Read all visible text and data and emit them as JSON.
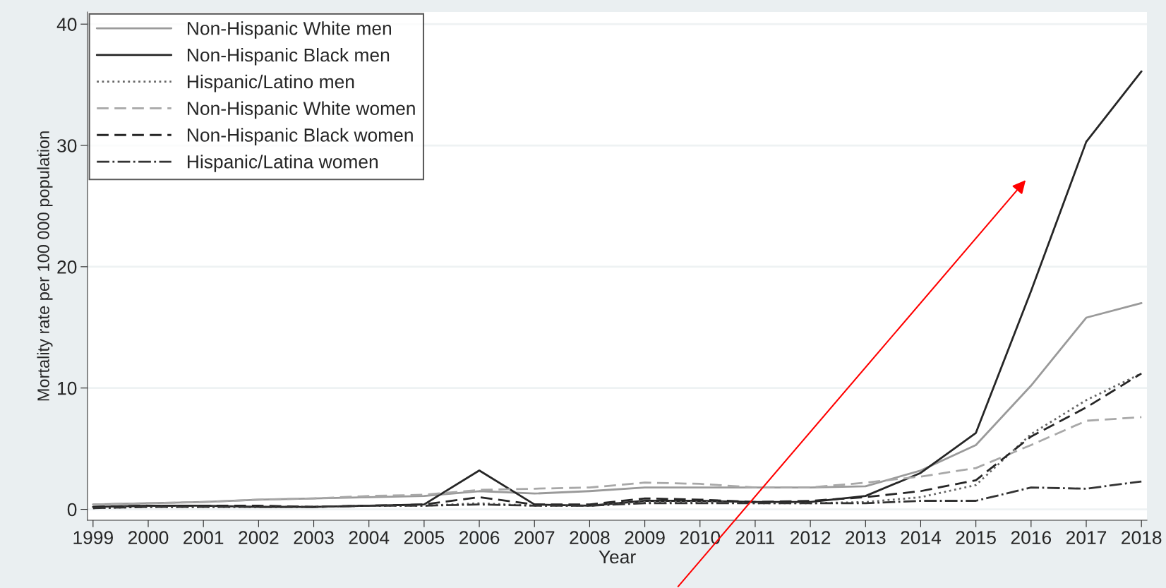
{
  "chart_data": {
    "type": "line",
    "xlabel": "Year",
    "ylabel": "Mortality rate per 100 000 population",
    "x": [
      1999,
      2000,
      2001,
      2002,
      2003,
      2004,
      2005,
      2006,
      2007,
      2008,
      2009,
      2010,
      2011,
      2012,
      2013,
      2014,
      2015,
      2016,
      2017,
      2018
    ],
    "xlim": [
      1998.9,
      2018.1
    ],
    "xticks": [
      1999,
      2000,
      2001,
      2002,
      2003,
      2004,
      2005,
      2006,
      2007,
      2008,
      2009,
      2010,
      2011,
      2012,
      2013,
      2014,
      2015,
      2016,
      2017,
      2018
    ],
    "ylim": [
      -0.9,
      41
    ],
    "yticks": [
      0,
      10,
      20,
      30,
      40
    ],
    "grid": "y",
    "legend": "top left",
    "marker": "none",
    "series": [
      {
        "name": "Non-Hispanic White men",
        "color": "#9a9a9a",
        "line_style": "solid",
        "values": [
          0.4,
          0.5,
          0.6,
          0.8,
          0.9,
          1.0,
          1.1,
          1.5,
          1.3,
          1.5,
          1.8,
          1.8,
          1.8,
          1.8,
          1.9,
          3.2,
          5.3,
          10.2,
          15.8,
          17.0
        ]
      },
      {
        "name": "Non-Hispanic Black men",
        "color": "#262626",
        "line_style": "solid",
        "values": [
          0.2,
          0.3,
          0.3,
          0.2,
          0.2,
          0.3,
          0.4,
          3.2,
          0.4,
          0.3,
          0.7,
          0.7,
          0.6,
          0.6,
          1.1,
          3.0,
          6.3,
          18.0,
          30.3,
          36.1
        ]
      },
      {
        "name": "Hispanic/Latino men",
        "color": "#666666",
        "line_style": "dotted",
        "values": [
          0.1,
          0.2,
          0.2,
          0.2,
          0.2,
          0.3,
          0.3,
          0.5,
          0.3,
          0.3,
          0.6,
          0.6,
          0.5,
          0.5,
          0.6,
          1.0,
          2.0,
          6.2,
          9.0,
          11.2
        ]
      },
      {
        "name": "Non-Hispanic White women",
        "color": "#a8a8a8",
        "line_style": "dashed",
        "values": [
          0.4,
          0.5,
          0.6,
          0.8,
          0.9,
          1.1,
          1.2,
          1.6,
          1.7,
          1.8,
          2.2,
          2.1,
          1.8,
          1.8,
          2.2,
          2.7,
          3.4,
          5.3,
          7.3,
          7.6
        ]
      },
      {
        "name": "Non-Hispanic Black women",
        "color": "#262626",
        "line_style": "dashed",
        "values": [
          0.2,
          0.3,
          0.3,
          0.3,
          0.2,
          0.3,
          0.4,
          1.0,
          0.4,
          0.4,
          0.9,
          0.8,
          0.6,
          0.7,
          1.0,
          1.5,
          2.4,
          6.0,
          8.4,
          11.2
        ]
      },
      {
        "name": "Hispanic/Latina women",
        "color": "#333333",
        "line_style": "dashdot",
        "values": [
          0.1,
          0.2,
          0.2,
          0.2,
          0.2,
          0.3,
          0.3,
          0.4,
          0.3,
          0.3,
          0.5,
          0.5,
          0.5,
          0.5,
          0.5,
          0.7,
          0.7,
          1.8,
          1.7,
          2.3
        ]
      }
    ]
  }
}
